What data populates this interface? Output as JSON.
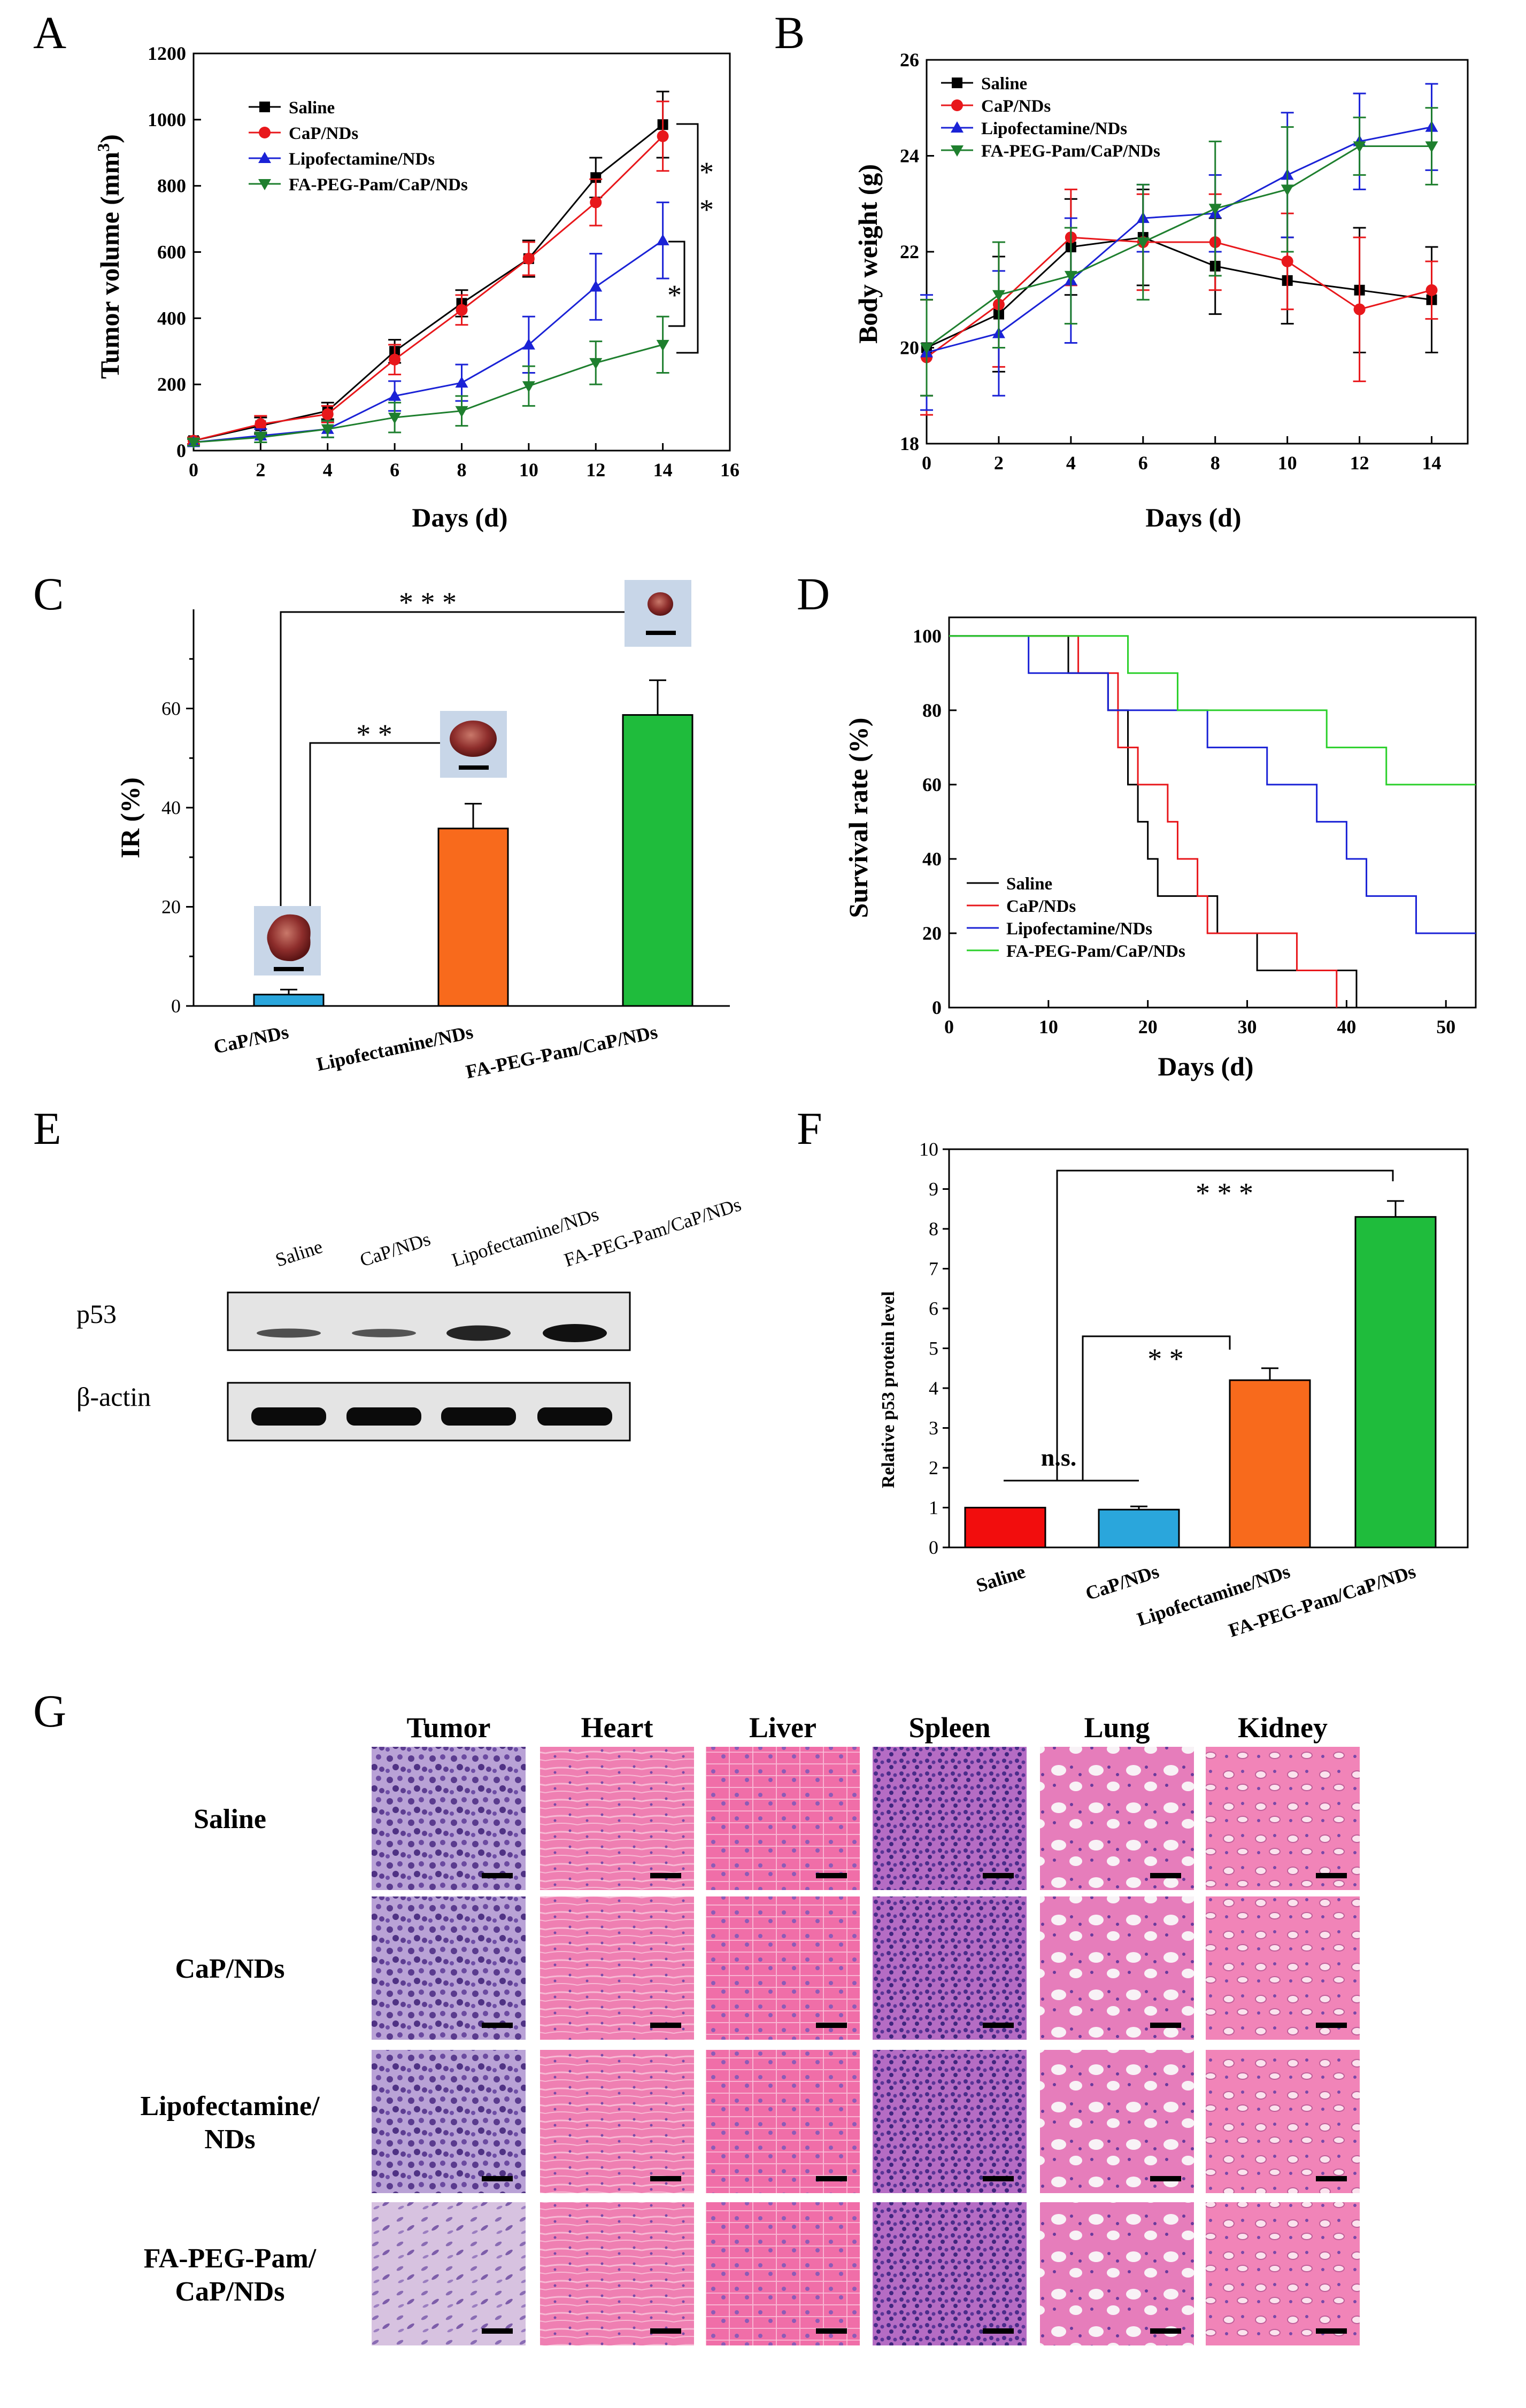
{
  "panels": {
    "A": "A",
    "B": "B",
    "C": "C",
    "D": "D",
    "E": "E",
    "F": "F",
    "G": "G"
  },
  "colors": {
    "saline": "#000000",
    "cap": "#e8171b",
    "lipo": "#1a22d6",
    "fa": "#1e7f2e",
    "lipo_d": "#1a22d6",
    "fa_d": "#2bd02b",
    "bar_cap": "#2aa6dc",
    "bar_lipo": "#f86a1c",
    "bar_fa": "#1fbc3c",
    "bar_saline": "#f20d0d"
  },
  "chart_data": [
    {
      "id": "A",
      "type": "line",
      "xlabel": "Days (d)",
      "ylabel": "Tumor volume (mm3)",
      "ylabel_main": "Tumor volume (mm",
      "ylabel_sup": "3",
      "ylabel_tail": ")",
      "xlim": [
        0,
        16
      ],
      "ylim": [
        0,
        1200
      ],
      "xticks": [
        "0",
        "2",
        "4",
        "6",
        "8",
        "10",
        "12",
        "14",
        "16"
      ],
      "yticks": [
        "0",
        "200",
        "400",
        "600",
        "800",
        "1000",
        "1200"
      ],
      "x": [
        0,
        2,
        4,
        6,
        8,
        10,
        12,
        14
      ],
      "series": [
        {
          "name": "Saline",
          "color": "saline",
          "marker": "square",
          "values": [
            30,
            75,
            120,
            300,
            445,
            580,
            825,
            985
          ],
          "err": [
            10,
            25,
            25,
            35,
            40,
            55,
            60,
            100
          ]
        },
        {
          "name": "CaP/NDs",
          "color": "cap",
          "marker": "circle",
          "values": [
            30,
            80,
            110,
            275,
            425,
            580,
            750,
            950
          ],
          "err": [
            10,
            25,
            25,
            45,
            45,
            50,
            70,
            105
          ]
        },
        {
          "name": "Lipofectamine/NDs",
          "color": "lipo",
          "marker": "triangle-up",
          "values": [
            25,
            45,
            65,
            165,
            205,
            320,
            495,
            635
          ],
          "err": [
            10,
            20,
            25,
            45,
            55,
            85,
            100,
            115
          ]
        },
        {
          "name": "FA-PEG-Pam/CaP/NDs",
          "color": "fa",
          "marker": "triangle-down",
          "values": [
            25,
            40,
            65,
            100,
            120,
            195,
            265,
            320
          ],
          "err": [
            10,
            15,
            25,
            45,
            45,
            60,
            65,
            85
          ]
        }
      ],
      "annotations": [
        "* *",
        "*"
      ]
    },
    {
      "id": "B",
      "type": "line",
      "xlabel": "Days (d)",
      "ylabel": "Body weight (g)",
      "xlim": [
        0,
        15
      ],
      "ylim": [
        18,
        26
      ],
      "xticks": [
        "0",
        "2",
        "4",
        "6",
        "8",
        "10",
        "12",
        "14"
      ],
      "yticks": [
        "18",
        "20",
        "22",
        "24",
        "26"
      ],
      "x": [
        0,
        2,
        4,
        6,
        8,
        10,
        12,
        14
      ],
      "series": [
        {
          "name": "Saline",
          "color": "saline",
          "marker": "square",
          "values": [
            20.0,
            20.7,
            22.1,
            22.3,
            21.7,
            21.4,
            21.2,
            21.0
          ],
          "err": [
            1.0,
            1.2,
            1.0,
            1.0,
            1.0,
            0.9,
            1.3,
            1.1
          ]
        },
        {
          "name": "CaP/NDs",
          "color": "cap",
          "marker": "circle",
          "values": [
            19.8,
            20.9,
            22.3,
            22.2,
            22.2,
            21.8,
            20.8,
            21.2
          ],
          "err": [
            1.2,
            1.3,
            1.0,
            1.0,
            1.0,
            1.0,
            1.5,
            0.6
          ]
        },
        {
          "name": "Lipofectamine/NDs",
          "color": "lipo",
          "marker": "triangle-up",
          "values": [
            19.9,
            20.3,
            21.4,
            22.7,
            22.8,
            23.6,
            24.3,
            24.6
          ],
          "err": [
            1.2,
            1.3,
            1.3,
            0.7,
            0.8,
            1.3,
            1.0,
            0.9
          ]
        },
        {
          "name": "FA-PEG-Pam/CaP/NDs",
          "color": "fa",
          "marker": "triangle-down",
          "values": [
            20.0,
            21.1,
            21.5,
            22.2,
            22.9,
            23.3,
            24.2,
            24.2
          ],
          "err": [
            1.0,
            1.1,
            1.0,
            1.2,
            1.4,
            1.3,
            0.6,
            0.8
          ]
        }
      ]
    },
    {
      "id": "C",
      "type": "bar",
      "ylabel": "IR (%)",
      "ylim": [
        0,
        80
      ],
      "yticks": [
        "0",
        "20",
        "40",
        "60"
      ],
      "categories": [
        "CaP/NDs",
        "Lipofectamine/NDs",
        "FA-PEG-Pam/CaP/NDs"
      ],
      "colors": [
        "bar_cap",
        "bar_lipo",
        "bar_fa"
      ],
      "values": [
        2.3,
        35.8,
        58.7
      ],
      "err": [
        1.0,
        5.0,
        7.0
      ],
      "annotations": [
        "* *",
        "* * *"
      ]
    },
    {
      "id": "D",
      "type": "line",
      "subtype": "survival-step",
      "xlabel": "Days (d)",
      "ylabel": "Survival rate (%)",
      "xlim": [
        0,
        53
      ],
      "ylim": [
        0,
        105
      ],
      "xticks": [
        "0",
        "10",
        "20",
        "30",
        "40",
        "50"
      ],
      "yticks": [
        "0",
        "20",
        "40",
        "60",
        "80",
        "100"
      ],
      "series": [
        {
          "name": "Saline",
          "color": "saline",
          "x": [
            0,
            12,
            12,
            16,
            16,
            18,
            18,
            19,
            19,
            20,
            20,
            21,
            21,
            23,
            23,
            27,
            27,
            31,
            31,
            34,
            34,
            41,
            41
          ],
          "values": [
            100,
            100,
            90,
            90,
            80,
            80,
            60,
            60,
            50,
            50,
            40,
            40,
            30,
            30,
            30,
            30,
            20,
            20,
            10,
            10,
            10,
            10,
            0
          ]
        },
        {
          "name": "CaP/NDs",
          "color": "cap",
          "x": [
            0,
            13,
            13,
            17,
            17,
            19,
            19,
            22,
            22,
            23,
            23,
            25,
            25,
            26,
            26,
            30,
            30,
            35,
            35,
            39,
            39
          ],
          "values": [
            100,
            100,
            90,
            90,
            70,
            70,
            60,
            60,
            50,
            50,
            40,
            40,
            30,
            30,
            20,
            20,
            20,
            20,
            10,
            10,
            0
          ]
        },
        {
          "name": "Lipofectamine/NDs",
          "color": "lipo_d",
          "x": [
            0,
            8,
            8,
            16,
            16,
            26,
            26,
            32,
            32,
            37,
            37,
            40,
            40,
            42,
            42,
            47,
            47,
            53
          ],
          "values": [
            100,
            100,
            90,
            90,
            80,
            80,
            70,
            70,
            60,
            60,
            50,
            50,
            40,
            40,
            30,
            30,
            20,
            20
          ]
        },
        {
          "name": "FA-PEG-Pam/CaP/NDs",
          "color": "fa_d",
          "x": [
            0,
            18,
            18,
            23,
            23,
            38,
            38,
            44,
            44,
            53
          ],
          "values": [
            100,
            100,
            90,
            90,
            80,
            80,
            70,
            70,
            60,
            60
          ]
        }
      ]
    },
    {
      "id": "F",
      "type": "bar",
      "ylabel": "Relative p53 protein level",
      "ylim": [
        0,
        10
      ],
      "yticks": [
        "0",
        "1",
        "2",
        "3",
        "4",
        "5",
        "6",
        "7",
        "8",
        "9",
        "10"
      ],
      "categories": [
        "Saline",
        "CaP/NDs",
        "Lipofectamine/NDs",
        "FA-PEG-Pam/CaP/NDs"
      ],
      "colors": [
        "bar_saline",
        "bar_cap",
        "bar_lipo",
        "bar_fa"
      ],
      "values": [
        1.0,
        0.95,
        4.2,
        8.3
      ],
      "err": [
        0.0,
        0.08,
        0.3,
        0.4
      ],
      "annotations": [
        "n.s.",
        "* *",
        "* * *"
      ]
    }
  ],
  "blot": {
    "lanes": [
      "Saline",
      "CaP/NDs",
      "Lipofectamine/NDs",
      "FA-PEG-Pam/CaP/NDs"
    ],
    "rows": [
      "p53",
      "β-actin"
    ],
    "p53_intensity": [
      0.35,
      0.3,
      0.8,
      1.0
    ],
    "actin_intensity": [
      1.0,
      1.0,
      1.0,
      1.0
    ]
  },
  "histology": {
    "columns": [
      "Tumor",
      "Heart",
      "Liver",
      "Spleen",
      "Lung",
      "Kidney"
    ],
    "rows": [
      "Saline",
      "CaP/NDs",
      "Lipofectamine/ NDs",
      "FA-PEG-Pam/ CaP/NDs"
    ],
    "row_lines": [
      [
        "Saline"
      ],
      [
        "CaP/NDs"
      ],
      [
        "Lipofectamine/",
        "NDs"
      ],
      [
        "FA-PEG-Pam/",
        "CaP/NDs"
      ]
    ]
  }
}
